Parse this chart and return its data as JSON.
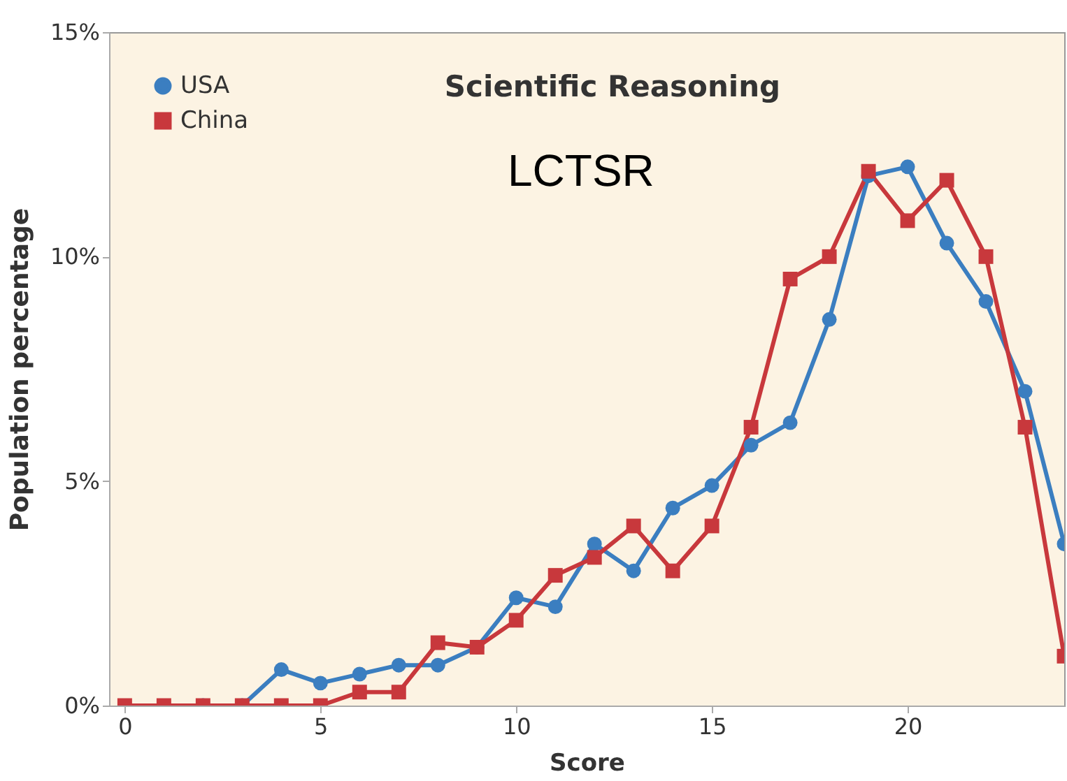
{
  "chart_data": {
    "type": "line",
    "title": "Scientific Reasoning",
    "xlabel": "Score",
    "ylabel": "Population percentage",
    "annotations": [
      "LCTSR"
    ],
    "x": [
      0,
      1,
      2,
      3,
      4,
      5,
      6,
      7,
      8,
      9,
      10,
      11,
      12,
      13,
      14,
      15,
      16,
      17,
      18,
      19,
      20,
      21,
      22,
      23,
      24
    ],
    "series": [
      {
        "name": "USA",
        "color": "#3b7ec0",
        "marker": "circle",
        "values": [
          null,
          null,
          0,
          0,
          0.8,
          0.5,
          0.7,
          0.9,
          0.9,
          1.3,
          2.4,
          2.2,
          3.6,
          3.0,
          4.4,
          4.9,
          5.8,
          6.3,
          8.6,
          11.8,
          12.0,
          10.3,
          9.0,
          7.0,
          3.6
        ]
      },
      {
        "name": "China",
        "color": "#c8383c",
        "marker": "square",
        "values": [
          0,
          0,
          0,
          0,
          0,
          0,
          0.3,
          0.3,
          1.4,
          1.3,
          1.9,
          2.9,
          3.3,
          4.0,
          3.0,
          4.0,
          6.2,
          9.5,
          10.0,
          11.9,
          10.8,
          11.7,
          10.0,
          6.2,
          1.1
        ]
      }
    ],
    "xlim": [
      -0.4,
      24
    ],
    "xticks": [
      0,
      5,
      10,
      15,
      20
    ],
    "ylim": [
      0,
      15
    ],
    "yticks": [
      {
        "value": 0,
        "label": "0%"
      },
      {
        "value": 5,
        "label": "5%"
      },
      {
        "value": 10,
        "label": "10%"
      },
      {
        "value": 15,
        "label": "15%"
      }
    ],
    "grid": false,
    "legend": "top left",
    "line_style": "solid"
  }
}
